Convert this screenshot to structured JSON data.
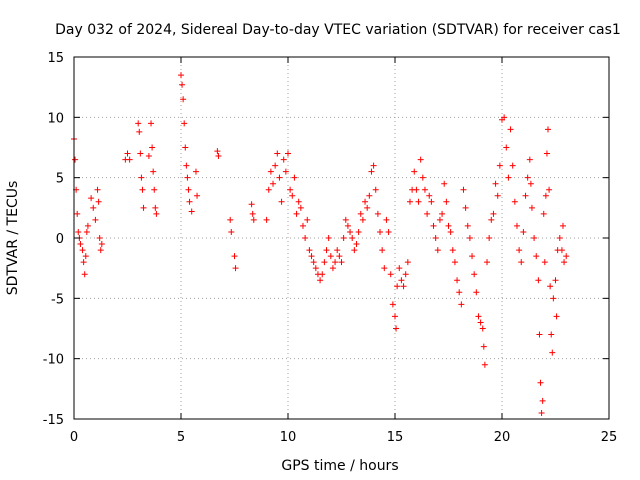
{
  "chart_data": {
    "type": "scatter",
    "title": "Day 032 of 2024, Sidereal Day-to-day VTEC variation (SDTVAR) for receiver cas1",
    "xlabel": "GPS time / hours",
    "ylabel": "SDTVAR / TECUs",
    "xlim": [
      0,
      25
    ],
    "ylim": [
      -15,
      15
    ],
    "xticks": [
      0,
      5,
      10,
      15,
      20,
      25
    ],
    "yticks": [
      -15,
      -10,
      -5,
      0,
      5,
      10,
      15
    ],
    "grid": true,
    "marker": "+",
    "color": "#ff0000",
    "series": [
      {
        "name": "SDTVAR",
        "points": [
          [
            0.0,
            8.2
          ],
          [
            0.05,
            6.5
          ],
          [
            0.1,
            4.0
          ],
          [
            0.15,
            2.0
          ],
          [
            0.2,
            0.5
          ],
          [
            0.25,
            0.0
          ],
          [
            0.3,
            -0.5
          ],
          [
            0.4,
            -1.0
          ],
          [
            0.45,
            -2.0
          ],
          [
            0.5,
            -3.0
          ],
          [
            0.55,
            -1.5
          ],
          [
            0.6,
            0.5
          ],
          [
            0.65,
            1.0
          ],
          [
            0.8,
            3.3
          ],
          [
            0.9,
            2.5
          ],
          [
            1.0,
            1.5
          ],
          [
            1.1,
            4.0
          ],
          [
            1.15,
            3.0
          ],
          [
            1.2,
            0.0
          ],
          [
            1.25,
            -1.0
          ],
          [
            1.3,
            -0.5
          ],
          [
            2.4,
            6.5
          ],
          [
            2.5,
            7.0
          ],
          [
            2.6,
            6.5
          ],
          [
            3.0,
            9.5
          ],
          [
            3.05,
            8.8
          ],
          [
            3.1,
            7.0
          ],
          [
            3.15,
            5.0
          ],
          [
            3.2,
            4.0
          ],
          [
            3.25,
            2.5
          ],
          [
            3.5,
            6.8
          ],
          [
            3.6,
            9.5
          ],
          [
            3.65,
            7.5
          ],
          [
            3.7,
            5.5
          ],
          [
            3.75,
            4.0
          ],
          [
            3.8,
            2.5
          ],
          [
            3.85,
            2.0
          ],
          [
            5.0,
            13.5
          ],
          [
            5.05,
            12.7
          ],
          [
            5.1,
            11.5
          ],
          [
            5.15,
            9.5
          ],
          [
            5.2,
            7.5
          ],
          [
            5.25,
            6.0
          ],
          [
            5.3,
            5.0
          ],
          [
            5.35,
            4.0
          ],
          [
            5.4,
            3.0
          ],
          [
            5.5,
            2.2
          ],
          [
            5.7,
            5.5
          ],
          [
            5.75,
            3.5
          ],
          [
            6.7,
            7.2
          ],
          [
            6.75,
            6.8
          ],
          [
            7.3,
            1.5
          ],
          [
            7.35,
            0.5
          ],
          [
            7.5,
            -1.5
          ],
          [
            7.55,
            -2.5
          ],
          [
            8.3,
            2.8
          ],
          [
            8.35,
            2.0
          ],
          [
            8.4,
            1.5
          ],
          [
            9.0,
            1.5
          ],
          [
            9.1,
            4.0
          ],
          [
            9.2,
            5.5
          ],
          [
            9.3,
            4.5
          ],
          [
            9.4,
            6.0
          ],
          [
            9.5,
            7.0
          ],
          [
            9.6,
            5.0
          ],
          [
            9.7,
            3.0
          ],
          [
            9.8,
            6.5
          ],
          [
            9.9,
            5.5
          ],
          [
            10.0,
            7.0
          ],
          [
            10.1,
            4.0
          ],
          [
            10.2,
            3.5
          ],
          [
            10.3,
            5.0
          ],
          [
            10.4,
            2.0
          ],
          [
            10.5,
            3.0
          ],
          [
            10.6,
            2.5
          ],
          [
            10.7,
            1.0
          ],
          [
            10.8,
            0.0
          ],
          [
            10.9,
            1.5
          ],
          [
            11.0,
            -1.0
          ],
          [
            11.1,
            -1.5
          ],
          [
            11.2,
            -2.0
          ],
          [
            11.3,
            -2.5
          ],
          [
            11.4,
            -3.0
          ],
          [
            11.5,
            -3.5
          ],
          [
            11.6,
            -3.0
          ],
          [
            11.7,
            -2.0
          ],
          [
            11.8,
            -1.0
          ],
          [
            11.9,
            0.0
          ],
          [
            12.0,
            -1.5
          ],
          [
            12.1,
            -2.5
          ],
          [
            12.2,
            -2.0
          ],
          [
            12.3,
            -1.0
          ],
          [
            12.4,
            -1.5
          ],
          [
            12.5,
            -2.0
          ],
          [
            12.6,
            0.0
          ],
          [
            12.7,
            1.5
          ],
          [
            12.8,
            1.0
          ],
          [
            12.9,
            0.5
          ],
          [
            13.0,
            0.0
          ],
          [
            13.1,
            -1.0
          ],
          [
            13.2,
            -0.5
          ],
          [
            13.3,
            0.5
          ],
          [
            13.4,
            2.0
          ],
          [
            13.5,
            1.5
          ],
          [
            13.6,
            3.0
          ],
          [
            13.7,
            2.5
          ],
          [
            13.8,
            3.5
          ],
          [
            13.9,
            5.5
          ],
          [
            14.0,
            6.0
          ],
          [
            14.1,
            4.0
          ],
          [
            14.2,
            2.0
          ],
          [
            14.3,
            0.5
          ],
          [
            14.4,
            -1.0
          ],
          [
            14.5,
            -2.5
          ],
          [
            14.6,
            1.5
          ],
          [
            14.7,
            0.5
          ],
          [
            14.8,
            -3.0
          ],
          [
            14.9,
            -5.5
          ],
          [
            15.0,
            -6.5
          ],
          [
            15.05,
            -7.5
          ],
          [
            15.1,
            -4.0
          ],
          [
            15.2,
            -2.5
          ],
          [
            15.3,
            -3.5
          ],
          [
            15.4,
            -4.0
          ],
          [
            15.5,
            -3.0
          ],
          [
            15.6,
            -2.0
          ],
          [
            15.7,
            3.0
          ],
          [
            15.8,
            4.0
          ],
          [
            15.9,
            5.5
          ],
          [
            16.0,
            4.0
          ],
          [
            16.1,
            3.0
          ],
          [
            16.2,
            6.5
          ],
          [
            16.3,
            5.0
          ],
          [
            16.4,
            4.0
          ],
          [
            16.5,
            2.0
          ],
          [
            16.6,
            3.5
          ],
          [
            16.7,
            3.0
          ],
          [
            16.8,
            1.0
          ],
          [
            16.9,
            0.0
          ],
          [
            17.0,
            -1.0
          ],
          [
            17.1,
            1.5
          ],
          [
            17.2,
            2.0
          ],
          [
            17.3,
            4.5
          ],
          [
            17.4,
            3.0
          ],
          [
            17.5,
            1.0
          ],
          [
            17.6,
            0.5
          ],
          [
            17.7,
            -1.0
          ],
          [
            17.8,
            -2.0
          ],
          [
            17.9,
            -3.5
          ],
          [
            18.0,
            -4.5
          ],
          [
            18.1,
            -5.5
          ],
          [
            18.2,
            4.0
          ],
          [
            18.3,
            2.5
          ],
          [
            18.4,
            1.0
          ],
          [
            18.5,
            0.0
          ],
          [
            18.6,
            -1.5
          ],
          [
            18.7,
            -3.0
          ],
          [
            18.8,
            -4.5
          ],
          [
            18.9,
            -6.5
          ],
          [
            19.0,
            -7.0
          ],
          [
            19.1,
            -7.5
          ],
          [
            19.15,
            -9.0
          ],
          [
            19.2,
            -10.5
          ],
          [
            19.3,
            -2.0
          ],
          [
            19.4,
            0.0
          ],
          [
            19.5,
            1.5
          ],
          [
            19.6,
            2.0
          ],
          [
            19.7,
            4.5
          ],
          [
            19.8,
            3.5
          ],
          [
            19.9,
            6.0
          ],
          [
            20.0,
            9.8
          ],
          [
            20.1,
            10.0
          ],
          [
            20.2,
            7.5
          ],
          [
            20.3,
            5.0
          ],
          [
            20.4,
            9.0
          ],
          [
            20.5,
            6.0
          ],
          [
            20.6,
            3.0
          ],
          [
            20.7,
            1.0
          ],
          [
            20.8,
            -1.0
          ],
          [
            20.9,
            -2.0
          ],
          [
            21.0,
            0.5
          ],
          [
            21.1,
            3.5
          ],
          [
            21.2,
            5.0
          ],
          [
            21.3,
            6.5
          ],
          [
            21.35,
            4.5
          ],
          [
            21.4,
            2.5
          ],
          [
            21.5,
            0.0
          ],
          [
            21.6,
            -1.5
          ],
          [
            21.7,
            -3.5
          ],
          [
            21.75,
            -8.0
          ],
          [
            21.8,
            -12.0
          ],
          [
            21.85,
            -14.5
          ],
          [
            21.9,
            -13.5
          ],
          [
            21.95,
            2.0
          ],
          [
            22.0,
            -2.0
          ],
          [
            22.05,
            3.5
          ],
          [
            22.1,
            7.0
          ],
          [
            22.15,
            9.0
          ],
          [
            22.2,
            4.0
          ],
          [
            22.25,
            -4.0
          ],
          [
            22.3,
            -8.0
          ],
          [
            22.35,
            -9.5
          ],
          [
            22.4,
            -5.0
          ],
          [
            22.5,
            -3.5
          ],
          [
            22.55,
            -6.5
          ],
          [
            22.6,
            -1.0
          ],
          [
            22.7,
            0.0
          ],
          [
            22.8,
            -1.0
          ],
          [
            22.85,
            1.0
          ],
          [
            22.9,
            -2.0
          ],
          [
            23.0,
            -1.5
          ]
        ]
      }
    ]
  }
}
